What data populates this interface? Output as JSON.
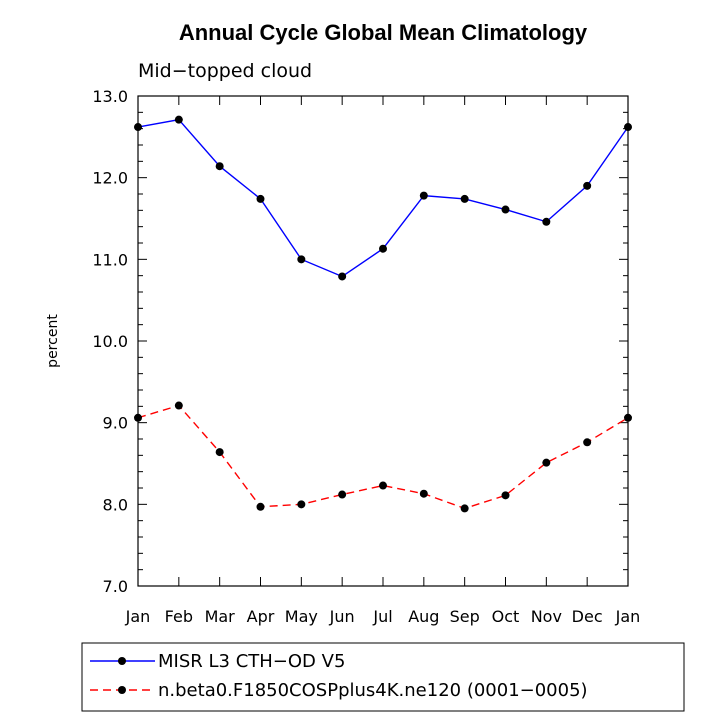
{
  "chart_data": {
    "type": "line",
    "title": "Annual Cycle Global Mean Climatology",
    "subtitle": "Mid−topped cloud",
    "xlabel": "",
    "ylabel": "percent",
    "categories": [
      "Jan",
      "Feb",
      "Mar",
      "Apr",
      "May",
      "Jun",
      "Jul",
      "Aug",
      "Sep",
      "Oct",
      "Nov",
      "Dec",
      "Jan"
    ],
    "ylim": [
      7.0,
      13.0
    ],
    "yticks": [
      "7.0",
      "8.0",
      "9.0",
      "10.0",
      "11.0",
      "12.0",
      "13.0"
    ],
    "series": [
      {
        "name": "MISR L3 CTH−OD V5",
        "color": "#0000ff",
        "dash": "solid",
        "values": [
          12.62,
          12.71,
          12.14,
          11.74,
          11.0,
          10.79,
          11.13,
          11.78,
          11.74,
          11.61,
          11.46,
          11.9,
          12.62
        ]
      },
      {
        "name": "n.beta0.F1850COSPplus4K.ne120 (0001−0005)",
        "color": "#ff0000",
        "dash": "dashed",
        "values": [
          9.06,
          9.21,
          8.64,
          7.97,
          8.0,
          8.12,
          8.23,
          8.13,
          7.95,
          8.11,
          8.51,
          8.76,
          9.06
        ]
      }
    ],
    "legend_position": "bottom"
  }
}
